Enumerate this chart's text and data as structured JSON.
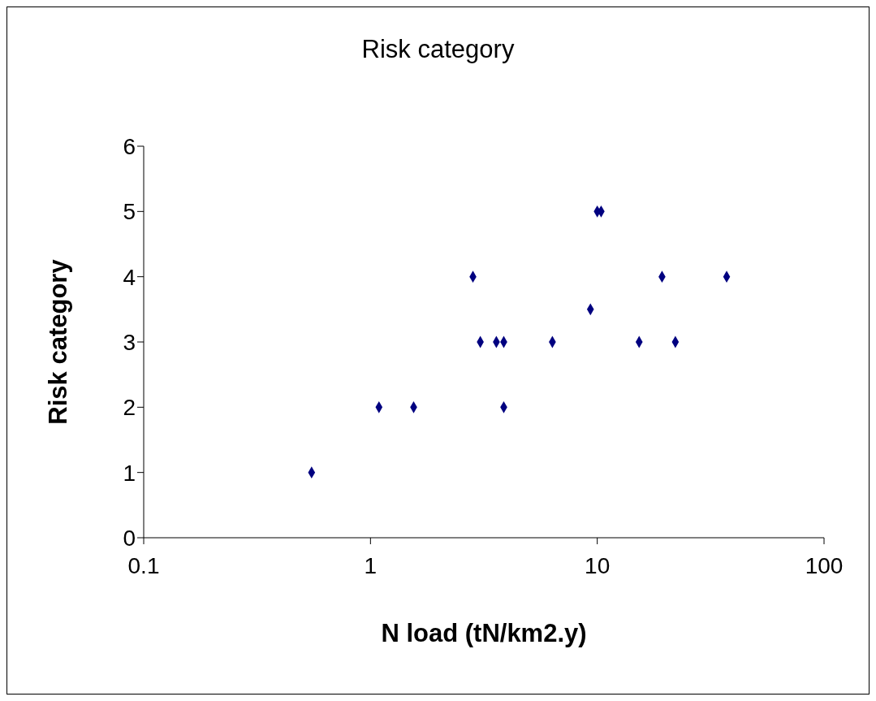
{
  "chart_data": {
    "type": "scatter",
    "title": "Risk category",
    "xlabel": "N load (tN/km2.y)",
    "ylabel": "Risk category",
    "x": [
      0.55,
      1.09,
      1.55,
      2.83,
      3.05,
      3.59,
      3.87,
      3.87,
      6.34,
      9.33,
      10,
      10.4,
      15.3,
      19.3,
      22.1,
      37.2
    ],
    "series": [
      {
        "color": "#000080",
        "values": [
          1,
          2,
          2,
          4,
          3,
          3,
          3,
          2,
          3,
          3.5,
          5,
          5,
          3,
          4,
          3,
          4
        ]
      }
    ],
    "xlim": [
      0.1,
      100
    ],
    "xticks": [
      0.1,
      1,
      10,
      100
    ],
    "ylim": [
      0,
      6
    ],
    "yticks": [
      0,
      1,
      2,
      3,
      4,
      5,
      6
    ],
    "log": "x",
    "grid": false,
    "legend": false,
    "marker": "diamond"
  }
}
